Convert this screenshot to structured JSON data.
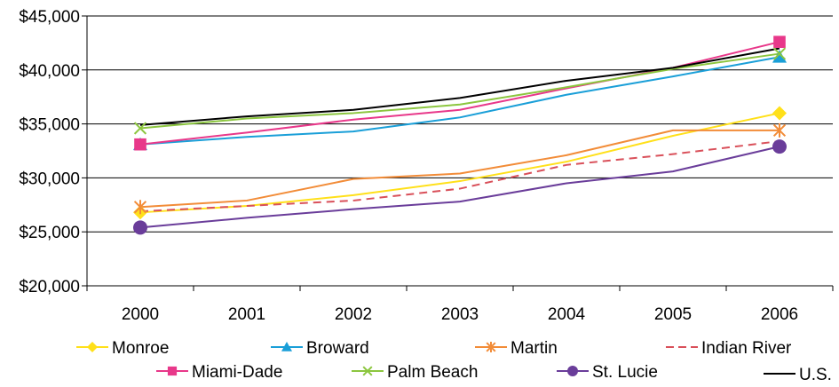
{
  "chart_data": {
    "type": "line",
    "title": "",
    "xlabel": "",
    "ylabel": "",
    "x": [
      "2000",
      "2001",
      "2002",
      "2003",
      "2004",
      "2005",
      "2006"
    ],
    "ylim": [
      20000,
      45000
    ],
    "yticks": [
      20000,
      25000,
      30000,
      35000,
      40000,
      45000
    ],
    "ytick_labels": [
      "$20,000",
      "$25,000",
      "$30,000",
      "$35,000",
      "$40,000",
      "$45,000"
    ],
    "grid": "horizontal",
    "legend_position": "bottom",
    "series": [
      {
        "name": "Monroe",
        "color": "#ffe01a",
        "marker": "diamond",
        "dash": "solid",
        "values": [
          26800,
          27400,
          28400,
          29700,
          31500,
          33900,
          36000
        ]
      },
      {
        "name": "Broward",
        "color": "#1a9fd8",
        "marker": "triangle",
        "dash": "solid",
        "values": [
          33100,
          33800,
          34300,
          35600,
          37700,
          39400,
          41200
        ]
      },
      {
        "name": "Martin",
        "color": "#f28c38",
        "marker": "asterisk",
        "dash": "solid",
        "values": [
          27300,
          27900,
          29900,
          30400,
          32100,
          34400,
          34400
        ]
      },
      {
        "name": "Indian River",
        "color": "#d9505a",
        "marker": "none",
        "dash": "dashed",
        "values": [
          26900,
          27400,
          27900,
          29000,
          31200,
          32200,
          33400
        ]
      },
      {
        "name": "Miami-Dade",
        "color": "#e8388a",
        "marker": "square",
        "dash": "solid",
        "values": [
          33100,
          34200,
          35400,
          36300,
          38300,
          40200,
          42600
        ]
      },
      {
        "name": "Palm Beach",
        "color": "#8cc63f",
        "marker": "x",
        "dash": "solid",
        "values": [
          34600,
          35500,
          36000,
          36800,
          38400,
          40100,
          41500
        ]
      },
      {
        "name": "St. Lucie",
        "color": "#6a3d9a",
        "marker": "circle",
        "dash": "solid",
        "values": [
          25400,
          26300,
          27100,
          27800,
          29500,
          30600,
          32900
        ]
      },
      {
        "name": "U.S.",
        "color": "#000000",
        "marker": "none",
        "dash": "solid",
        "values": [
          34900,
          35700,
          36300,
          37400,
          39000,
          40200,
          42000
        ]
      }
    ]
  }
}
